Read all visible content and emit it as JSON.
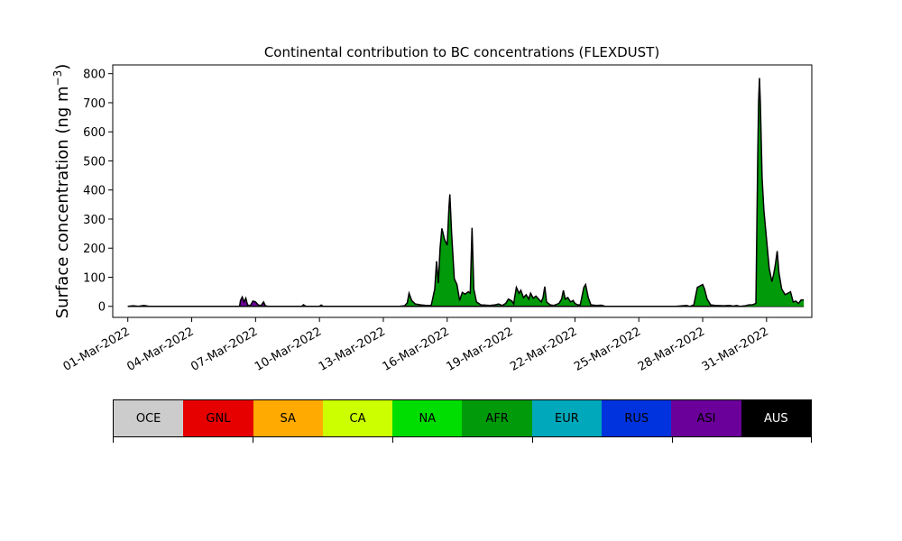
{
  "chart_data": {
    "type": "area",
    "title": "Continental contribution to BC concentrations (FLEXDUST)",
    "ylabel": "Surface concentration (ng m$^{-3}$)",
    "ylabel_parts": {
      "text": "Surface concentration (ng m",
      "sup": "−3",
      "close": ")"
    },
    "xlabel": "",
    "ylim": [
      -38,
      830
    ],
    "xlim": [
      "2022-02-28 07:00",
      "2022-04-02 03:00"
    ],
    "yticks": [
      0,
      100,
      200,
      300,
      400,
      500,
      600,
      700,
      800
    ],
    "xticks": [
      "2022-03-01",
      "2022-03-04",
      "2022-03-07",
      "2022-03-10",
      "2022-03-13",
      "2022-03-16",
      "2022-03-19",
      "2022-03-22",
      "2022-03-25",
      "2022-03-28",
      "2022-03-31"
    ],
    "xticklabels": [
      "01-Mar-2022",
      "04-Mar-2022",
      "07-Mar-2022",
      "10-Mar-2022",
      "13-Mar-2022",
      "16-Mar-2022",
      "19-Mar-2022",
      "22-Mar-2022",
      "25-Mar-2022",
      "28-Mar-2022",
      "31-Mar-2022"
    ],
    "series": [
      {
        "name": "ASI",
        "color": "#6a0099",
        "points": [
          [
            "2022-03-06 06:00",
            0
          ],
          [
            "2022-03-06 07:00",
            20
          ],
          [
            "2022-03-06 09:00",
            32
          ],
          [
            "2022-03-06 11:00",
            15
          ],
          [
            "2022-03-06 13:00",
            28
          ],
          [
            "2022-03-06 15:00",
            5
          ],
          [
            "2022-03-06 18:00",
            2
          ],
          [
            "2022-03-06 21:00",
            18
          ],
          [
            "2022-03-07 00:00",
            15
          ],
          [
            "2022-03-07 03:00",
            5
          ],
          [
            "2022-03-07 06:00",
            2
          ],
          [
            "2022-03-07 09:00",
            15
          ],
          [
            "2022-03-07 11:00",
            2
          ],
          [
            "2022-03-07 14:00",
            0
          ],
          [
            "2022-03-09 05:00",
            0
          ],
          [
            "2022-03-09 06:00",
            5
          ],
          [
            "2022-03-09 09:00",
            0
          ],
          [
            "2022-03-10 00:00",
            0
          ],
          [
            "2022-03-10 02:00",
            4
          ],
          [
            "2022-03-10 04:00",
            0
          ]
        ]
      },
      {
        "name": "AFR",
        "color": "#009a0a",
        "points": [
          [
            "2022-03-13 18:00",
            0
          ],
          [
            "2022-03-14 00:00",
            2
          ],
          [
            "2022-03-14 03:00",
            12
          ],
          [
            "2022-03-14 05:00",
            45
          ],
          [
            "2022-03-14 08:00",
            20
          ],
          [
            "2022-03-14 12:00",
            8
          ],
          [
            "2022-03-14 18:00",
            5
          ],
          [
            "2022-03-15 00:00",
            3
          ],
          [
            "2022-03-15 06:00",
            3
          ],
          [
            "2022-03-15 10:00",
            60
          ],
          [
            "2022-03-15 12:00",
            155
          ],
          [
            "2022-03-15 14:00",
            80
          ],
          [
            "2022-03-15 16:00",
            200
          ],
          [
            "2022-03-15 18:00",
            268
          ],
          [
            "2022-03-15 21:00",
            230
          ],
          [
            "2022-03-16 00:00",
            210
          ],
          [
            "2022-03-16 02:00",
            340
          ],
          [
            "2022-03-16 03:00",
            385
          ],
          [
            "2022-03-16 05:00",
            250
          ],
          [
            "2022-03-16 08:00",
            95
          ],
          [
            "2022-03-16 11:00",
            75
          ],
          [
            "2022-03-16 14:00",
            20
          ],
          [
            "2022-03-16 17:00",
            48
          ],
          [
            "2022-03-16 20:00",
            42
          ],
          [
            "2022-03-17 00:00",
            50
          ],
          [
            "2022-03-17 02:00",
            45
          ],
          [
            "2022-03-17 04:00",
            270
          ],
          [
            "2022-03-17 06:00",
            60
          ],
          [
            "2022-03-17 09:00",
            15
          ],
          [
            "2022-03-17 14:00",
            5
          ],
          [
            "2022-03-18 00:00",
            3
          ],
          [
            "2022-03-18 06:00",
            5
          ],
          [
            "2022-03-18 10:00",
            8
          ],
          [
            "2022-03-18 14:00",
            3
          ],
          [
            "2022-03-18 18:00",
            10
          ],
          [
            "2022-03-18 21:00",
            25
          ],
          [
            "2022-03-19 01:00",
            18
          ],
          [
            "2022-03-19 03:00",
            8
          ],
          [
            "2022-03-19 04:00",
            30
          ],
          [
            "2022-03-19 06:00",
            65
          ],
          [
            "2022-03-19 09:00",
            45
          ],
          [
            "2022-03-19 11:00",
            55
          ],
          [
            "2022-03-19 14:00",
            30
          ],
          [
            "2022-03-19 17:00",
            40
          ],
          [
            "2022-03-19 20:00",
            25
          ],
          [
            "2022-03-19 22:00",
            45
          ],
          [
            "2022-03-20 01:00",
            28
          ],
          [
            "2022-03-20 04:00",
            35
          ],
          [
            "2022-03-20 07:00",
            25
          ],
          [
            "2022-03-20 10:00",
            15
          ],
          [
            "2022-03-20 12:00",
            30
          ],
          [
            "2022-03-20 14:00",
            68
          ],
          [
            "2022-03-20 16:00",
            15
          ],
          [
            "2022-03-20 20:00",
            5
          ],
          [
            "2022-03-21 00:00",
            3
          ],
          [
            "2022-03-21 06:00",
            10
          ],
          [
            "2022-03-21 09:00",
            25
          ],
          [
            "2022-03-21 11:00",
            55
          ],
          [
            "2022-03-21 13:00",
            25
          ],
          [
            "2022-03-21 16:00",
            30
          ],
          [
            "2022-03-21 19:00",
            15
          ],
          [
            "2022-03-21 22:00",
            20
          ],
          [
            "2022-03-22 00:00",
            10
          ],
          [
            "2022-03-22 03:00",
            5
          ],
          [
            "2022-03-22 06:00",
            5
          ],
          [
            "2022-03-22 10:00",
            65
          ],
          [
            "2022-03-22 12:00",
            75
          ],
          [
            "2022-03-22 15:00",
            30
          ],
          [
            "2022-03-22 18:00",
            5
          ],
          [
            "2022-03-23 00:00",
            3
          ],
          [
            "2022-03-23 06:00",
            4
          ],
          [
            "2022-03-23 10:00",
            0
          ],
          [
            "2022-03-27 10:00",
            0
          ],
          [
            "2022-03-27 14:00",
            5
          ],
          [
            "2022-03-27 18:00",
            65
          ],
          [
            "2022-03-27 21:00",
            70
          ],
          [
            "2022-03-28 00:00",
            75
          ],
          [
            "2022-03-28 02:00",
            60
          ],
          [
            "2022-03-28 05:00",
            25
          ],
          [
            "2022-03-28 09:00",
            5
          ],
          [
            "2022-03-28 14:00",
            3
          ],
          [
            "2022-03-29 00:00",
            2
          ],
          [
            "2022-03-29 06:00",
            3
          ],
          [
            "2022-03-29 12:00",
            0
          ],
          [
            "2022-03-29 18:00",
            0
          ],
          [
            "2022-03-30 00:00",
            2
          ],
          [
            "2022-03-30 04:00",
            5
          ],
          [
            "2022-03-30 08:00",
            5
          ],
          [
            "2022-03-30 12:00",
            10
          ],
          [
            "2022-03-30 14:00",
            500
          ],
          [
            "2022-03-30 15:00",
            700
          ],
          [
            "2022-03-30 16:00",
            785
          ],
          [
            "2022-03-30 17:00",
            700
          ],
          [
            "2022-03-30 19:00",
            440
          ],
          [
            "2022-03-30 21:00",
            330
          ],
          [
            "2022-03-31 00:00",
            230
          ],
          [
            "2022-03-31 03:00",
            130
          ],
          [
            "2022-03-31 06:00",
            85
          ],
          [
            "2022-03-31 08:00",
            110
          ],
          [
            "2022-03-31 10:00",
            145
          ],
          [
            "2022-03-31 12:00",
            190
          ],
          [
            "2022-03-31 14:00",
            115
          ],
          [
            "2022-03-31 17:00",
            60
          ],
          [
            "2022-03-31 21:00",
            40
          ],
          [
            "2022-04-01 00:00",
            45
          ],
          [
            "2022-04-01 03:00",
            50
          ],
          [
            "2022-04-01 06:00",
            15
          ],
          [
            "2022-04-01 09:00",
            18
          ],
          [
            "2022-04-01 12:00",
            10
          ],
          [
            "2022-04-01 15:00",
            22
          ],
          [
            "2022-04-01 18:00",
            22
          ]
        ]
      }
    ],
    "total_extra": [
      [
        "2022-03-01 00:00",
        0
      ],
      [
        "2022-03-01 06:00",
        2
      ],
      [
        "2022-03-01 12:00",
        0
      ],
      [
        "2022-03-01 18:00",
        3
      ],
      [
        "2022-03-02 00:00",
        0
      ],
      [
        "2022-03-09 04:00",
        0
      ],
      [
        "2022-03-09 06:00",
        5
      ],
      [
        "2022-03-09 08:00",
        0
      ],
      [
        "2022-03-10 00:00",
        0
      ],
      [
        "2022-03-10 02:00",
        4
      ],
      [
        "2022-03-10 04:00",
        0
      ],
      [
        "2022-03-26 18:00",
        0
      ],
      [
        "2022-03-27 06:00",
        3
      ],
      [
        "2022-03-27 09:00",
        0
      ],
      [
        "2022-03-29 10:00",
        0
      ],
      [
        "2022-03-29 14:00",
        3
      ],
      [
        "2022-03-29 18:00",
        0
      ]
    ],
    "legend": {
      "position": "bottom",
      "items": [
        {
          "label": "OCE",
          "color": "#cccccc"
        },
        {
          "label": "GNL",
          "color": "#e60000"
        },
        {
          "label": "SA",
          "color": "#ffaa00"
        },
        {
          "label": "CA",
          "color": "#ccff00"
        },
        {
          "label": "NA",
          "color": "#00dd00"
        },
        {
          "label": "AFR",
          "color": "#009a0a"
        },
        {
          "label": "EUR",
          "color": "#00a8bb"
        },
        {
          "label": "RUS",
          "color": "#0033dd"
        },
        {
          "label": "ASI",
          "color": "#6a0099"
        },
        {
          "label": "AUS",
          "color": "#000000"
        }
      ]
    },
    "grid": false
  }
}
